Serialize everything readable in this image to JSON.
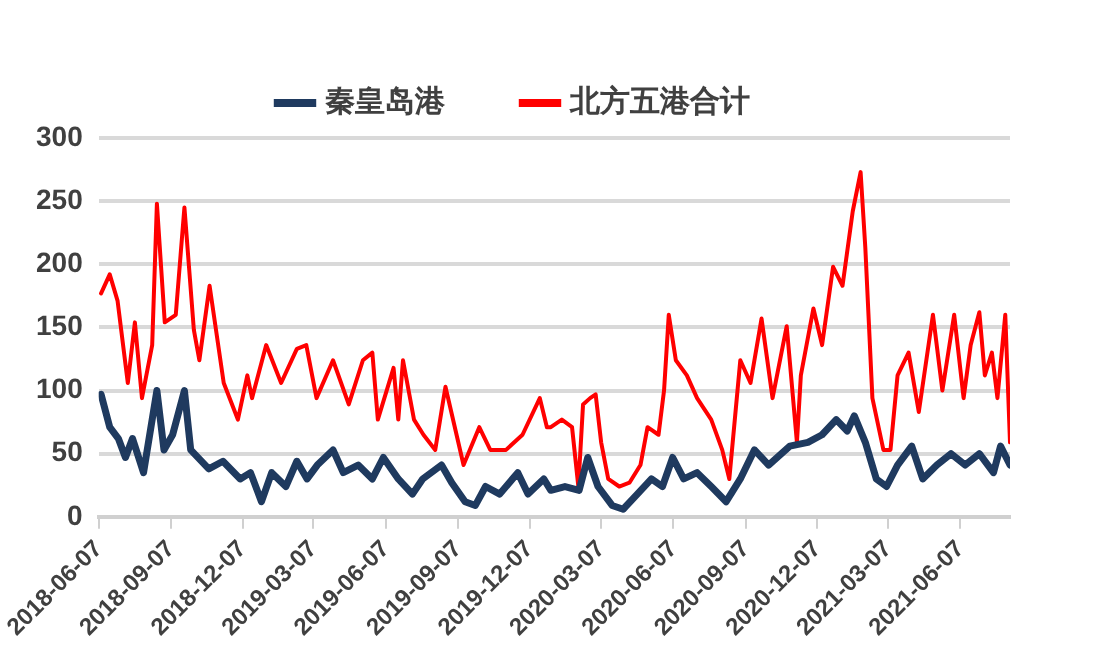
{
  "chart_data": {
    "type": "line",
    "legend": "top",
    "grid": "y",
    "marker": "none",
    "line_style": "solid",
    "xlim": [
      "2018-06-07",
      "2021-08-09"
    ],
    "ylim": [
      0,
      300
    ],
    "yticks": [
      0,
      50,
      100,
      150,
      200,
      250,
      300
    ],
    "xticks": [
      "2018-06-07",
      "2018-09-07",
      "2018-12-07",
      "2019-03-07",
      "2019-06-07",
      "2019-09-07",
      "2019-12-07",
      "2020-03-07",
      "2020-06-07",
      "2020-09-07",
      "2020-12-07",
      "2021-03-07",
      "2021-06-07"
    ],
    "series": [
      {
        "name": "秦皇岛港",
        "color": "#1f3a5f",
        "x": [
          "2018-06-10",
          "2018-06-21",
          "2018-07-02",
          "2018-07-11",
          "2018-07-20",
          "2018-08-03",
          "2018-08-20",
          "2018-08-29",
          "2018-09-09",
          "2018-09-24",
          "2018-10-02",
          "2018-10-25",
          "2018-11-12",
          "2018-12-04",
          "2018-12-17",
          "2018-12-31",
          "2019-01-13",
          "2019-01-31",
          "2019-02-14",
          "2019-02-27",
          "2019-03-12",
          "2019-04-01",
          "2019-04-14",
          "2019-05-03",
          "2019-05-21",
          "2019-06-04",
          "2019-06-23",
          "2019-07-11",
          "2019-07-24",
          "2019-08-17",
          "2019-08-30",
          "2019-09-16",
          "2019-09-29",
          "2019-10-12",
          "2019-10-30",
          "2019-11-22",
          "2019-12-05",
          "2019-12-25",
          "2020-01-03",
          "2020-01-21",
          "2020-02-08",
          "2020-02-19",
          "2020-03-03",
          "2020-03-21",
          "2020-04-04",
          "2020-04-22",
          "2020-05-10",
          "2020-05-24",
          "2020-06-06",
          "2020-06-20",
          "2020-07-07",
          "2020-07-25",
          "2020-08-13",
          "2020-08-31",
          "2020-09-18",
          "2020-10-06",
          "2020-11-02",
          "2020-11-25",
          "2020-12-13",
          "2020-12-31",
          "2021-01-14",
          "2021-01-23",
          "2021-02-06",
          "2021-02-20",
          "2021-03-05",
          "2021-03-19",
          "2021-04-06",
          "2021-04-20",
          "2021-05-08",
          "2021-05-26",
          "2021-06-13",
          "2021-07-01",
          "2021-07-19",
          "2021-07-28",
          "2021-08-09"
        ],
        "values": [
          97,
          71,
          62,
          47,
          62,
          35,
          100,
          53,
          65,
          100,
          53,
          38,
          44,
          30,
          35,
          12,
          35,
          24,
          44,
          30,
          41,
          53,
          35,
          41,
          30,
          47,
          30,
          18,
          30,
          41,
          27,
          12,
          9,
          24,
          18,
          35,
          18,
          30,
          21,
          24,
          21,
          47,
          24,
          9,
          6,
          18,
          30,
          24,
          47,
          30,
          35,
          24,
          12,
          30,
          53,
          41,
          56,
          59,
          65,
          77,
          68,
          80,
          59,
          30,
          24,
          41,
          56,
          30,
          41,
          50,
          41,
          50,
          35,
          56,
          41
        ]
      },
      {
        "name": "北方五港合计",
        "color": "#ff0000",
        "x": [
          "2018-06-10",
          "2018-06-21",
          "2018-07-01",
          "2018-07-14",
          "2018-07-23",
          "2018-08-01",
          "2018-08-14",
          "2018-08-20",
          "2018-08-30",
          "2018-09-13",
          "2018-09-24",
          "2018-10-06",
          "2018-10-13",
          "2018-10-26",
          "2018-11-13",
          "2018-12-01",
          "2018-12-13",
          "2018-12-19",
          "2019-01-06",
          "2019-01-25",
          "2019-02-14",
          "2019-02-26",
          "2019-03-11",
          "2019-04-01",
          "2019-04-21",
          "2019-05-09",
          "2019-05-21",
          "2019-05-28",
          "2019-06-17",
          "2019-06-23",
          "2019-06-29",
          "2019-07-13",
          "2019-07-25",
          "2019-08-09",
          "2019-08-22",
          "2019-09-14",
          "2019-10-04",
          "2019-10-18",
          "2019-11-07",
          "2019-11-28",
          "2019-12-20",
          "2019-12-29",
          "2020-01-03",
          "2020-01-17",
          "2020-01-30",
          "2020-02-07",
          "2020-02-13",
          "2020-02-22",
          "2020-02-29",
          "2020-03-07",
          "2020-03-16",
          "2020-03-30",
          "2020-04-12",
          "2020-04-26",
          "2020-05-05",
          "2020-05-19",
          "2020-05-26",
          "2020-06-01",
          "2020-06-10",
          "2020-06-24",
          "2020-07-07",
          "2020-07-25",
          "2020-08-08",
          "2020-08-17",
          "2020-08-31",
          "2020-09-13",
          "2020-09-27",
          "2020-10-11",
          "2020-10-29",
          "2020-11-11",
          "2020-11-16",
          "2020-12-02",
          "2020-12-13",
          "2020-12-27",
          "2021-01-08",
          "2021-01-21",
          "2021-01-31",
          "2021-02-06",
          "2021-02-15",
          "2021-03-01",
          "2021-03-10",
          "2021-03-19",
          "2021-04-02",
          "2021-04-15",
          "2021-05-03",
          "2021-05-15",
          "2021-05-30",
          "2021-06-11",
          "2021-06-20",
          "2021-07-01",
          "2021-07-08",
          "2021-07-17",
          "2021-07-24",
          "2021-08-03",
          "2021-08-09"
        ],
        "values": [
          177,
          192,
          171,
          106,
          154,
          94,
          136,
          248,
          154,
          160,
          245,
          148,
          124,
          183,
          106,
          77,
          112,
          94,
          136,
          106,
          133,
          136,
          94,
          124,
          89,
          124,
          130,
          77,
          118,
          77,
          124,
          77,
          65,
          53,
          103,
          41,
          71,
          53,
          53,
          65,
          94,
          71,
          71,
          77,
          71,
          24,
          89,
          94,
          97,
          59,
          30,
          24,
          27,
          41,
          71,
          65,
          100,
          160,
          124,
          112,
          94,
          77,
          53,
          30,
          124,
          106,
          157,
          94,
          151,
          59,
          112,
          165,
          136,
          198,
          183,
          242,
          273,
          213,
          94,
          53,
          53,
          112,
          130,
          83,
          160,
          100,
          160,
          94,
          136,
          162,
          112,
          130,
          94,
          160,
          59
        ]
      }
    ]
  }
}
